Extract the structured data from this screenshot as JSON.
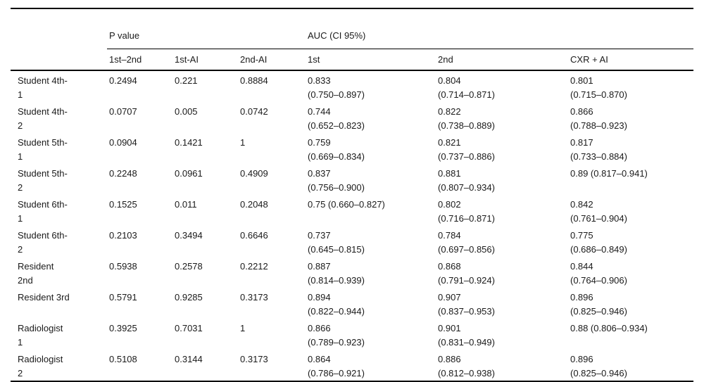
{
  "table": {
    "groups": {
      "p_value": "P value",
      "auc": "AUC (CI 95%)"
    },
    "columns": [
      "1st–2nd",
      "1st-AI",
      "2nd-AI",
      "1st",
      "2nd",
      "CXR + AI"
    ],
    "rows": [
      {
        "label": "Student 4th-\n1",
        "cells": [
          "0.2494",
          "0.221",
          "0.8884",
          "0.833\n(0.750–0.897)",
          "0.804\n(0.714–0.871)",
          "0.801\n(0.715–0.870)"
        ]
      },
      {
        "label": "Student 4th-\n2",
        "cells": [
          "0.0707",
          "0.005",
          "0.0742",
          "0.744\n(0.652–0.823)",
          "0.822\n(0.738–0.889)",
          "0.866\n(0.788–0.923)"
        ]
      },
      {
        "label": "Student 5th-\n1",
        "cells": [
          "0.0904",
          "0.1421",
          "1",
          "0.759\n(0.669–0.834)",
          "0.821\n(0.737–0.886)",
          "0.817\n(0.733–0.884)"
        ]
      },
      {
        "label": "Student 5th-\n2",
        "cells": [
          "0.2248",
          "0.0961",
          "0.4909",
          "0.837\n(0.756–0.900)",
          "0.881\n(0.807–0.934)",
          "0.89 (0.817–0.941)"
        ]
      },
      {
        "label": "Student 6th-\n1",
        "cells": [
          "0.1525",
          "0.011",
          "0.2048",
          "0.75 (0.660–0.827)",
          "0.802\n(0.716–0.871)",
          "0.842\n(0.761–0.904)"
        ]
      },
      {
        "label": "Student 6th-\n2",
        "cells": [
          "0.2103",
          "0.3494",
          "0.6646",
          "0.737\n(0.645–0.815)",
          "0.784\n(0.697–0.856)",
          "0.775\n(0.686–0.849)"
        ]
      },
      {
        "label": "Resident\n2nd",
        "cells": [
          "0.5938",
          "0.2578",
          "0.2212",
          "0.887\n(0.814–0.939)",
          "0.868\n(0.791–0.924)",
          "0.844\n(0.764–0.906)"
        ]
      },
      {
        "label": "Resident 3rd",
        "cells": [
          "0.5791",
          "0.9285",
          "0.3173",
          "0.894\n(0.822–0.944)",
          "0.907\n(0.837–0.953)",
          "0.896\n(0.825–0.946)"
        ]
      },
      {
        "label": "Radiologist\n1",
        "cells": [
          "0.3925",
          "0.7031",
          "1",
          "0.866\n(0.789–0.923)",
          "0.901\n(0.831–0.949)",
          "0.88 (0.806–0.934)"
        ]
      },
      {
        "label": "Radiologist\n2",
        "cells": [
          "0.5108",
          "0.3144",
          "0.3173",
          "0.864\n(0.786–0.921)",
          "0.886\n(0.812–0.938)",
          "0.896\n(0.825–0.946)"
        ]
      }
    ]
  }
}
